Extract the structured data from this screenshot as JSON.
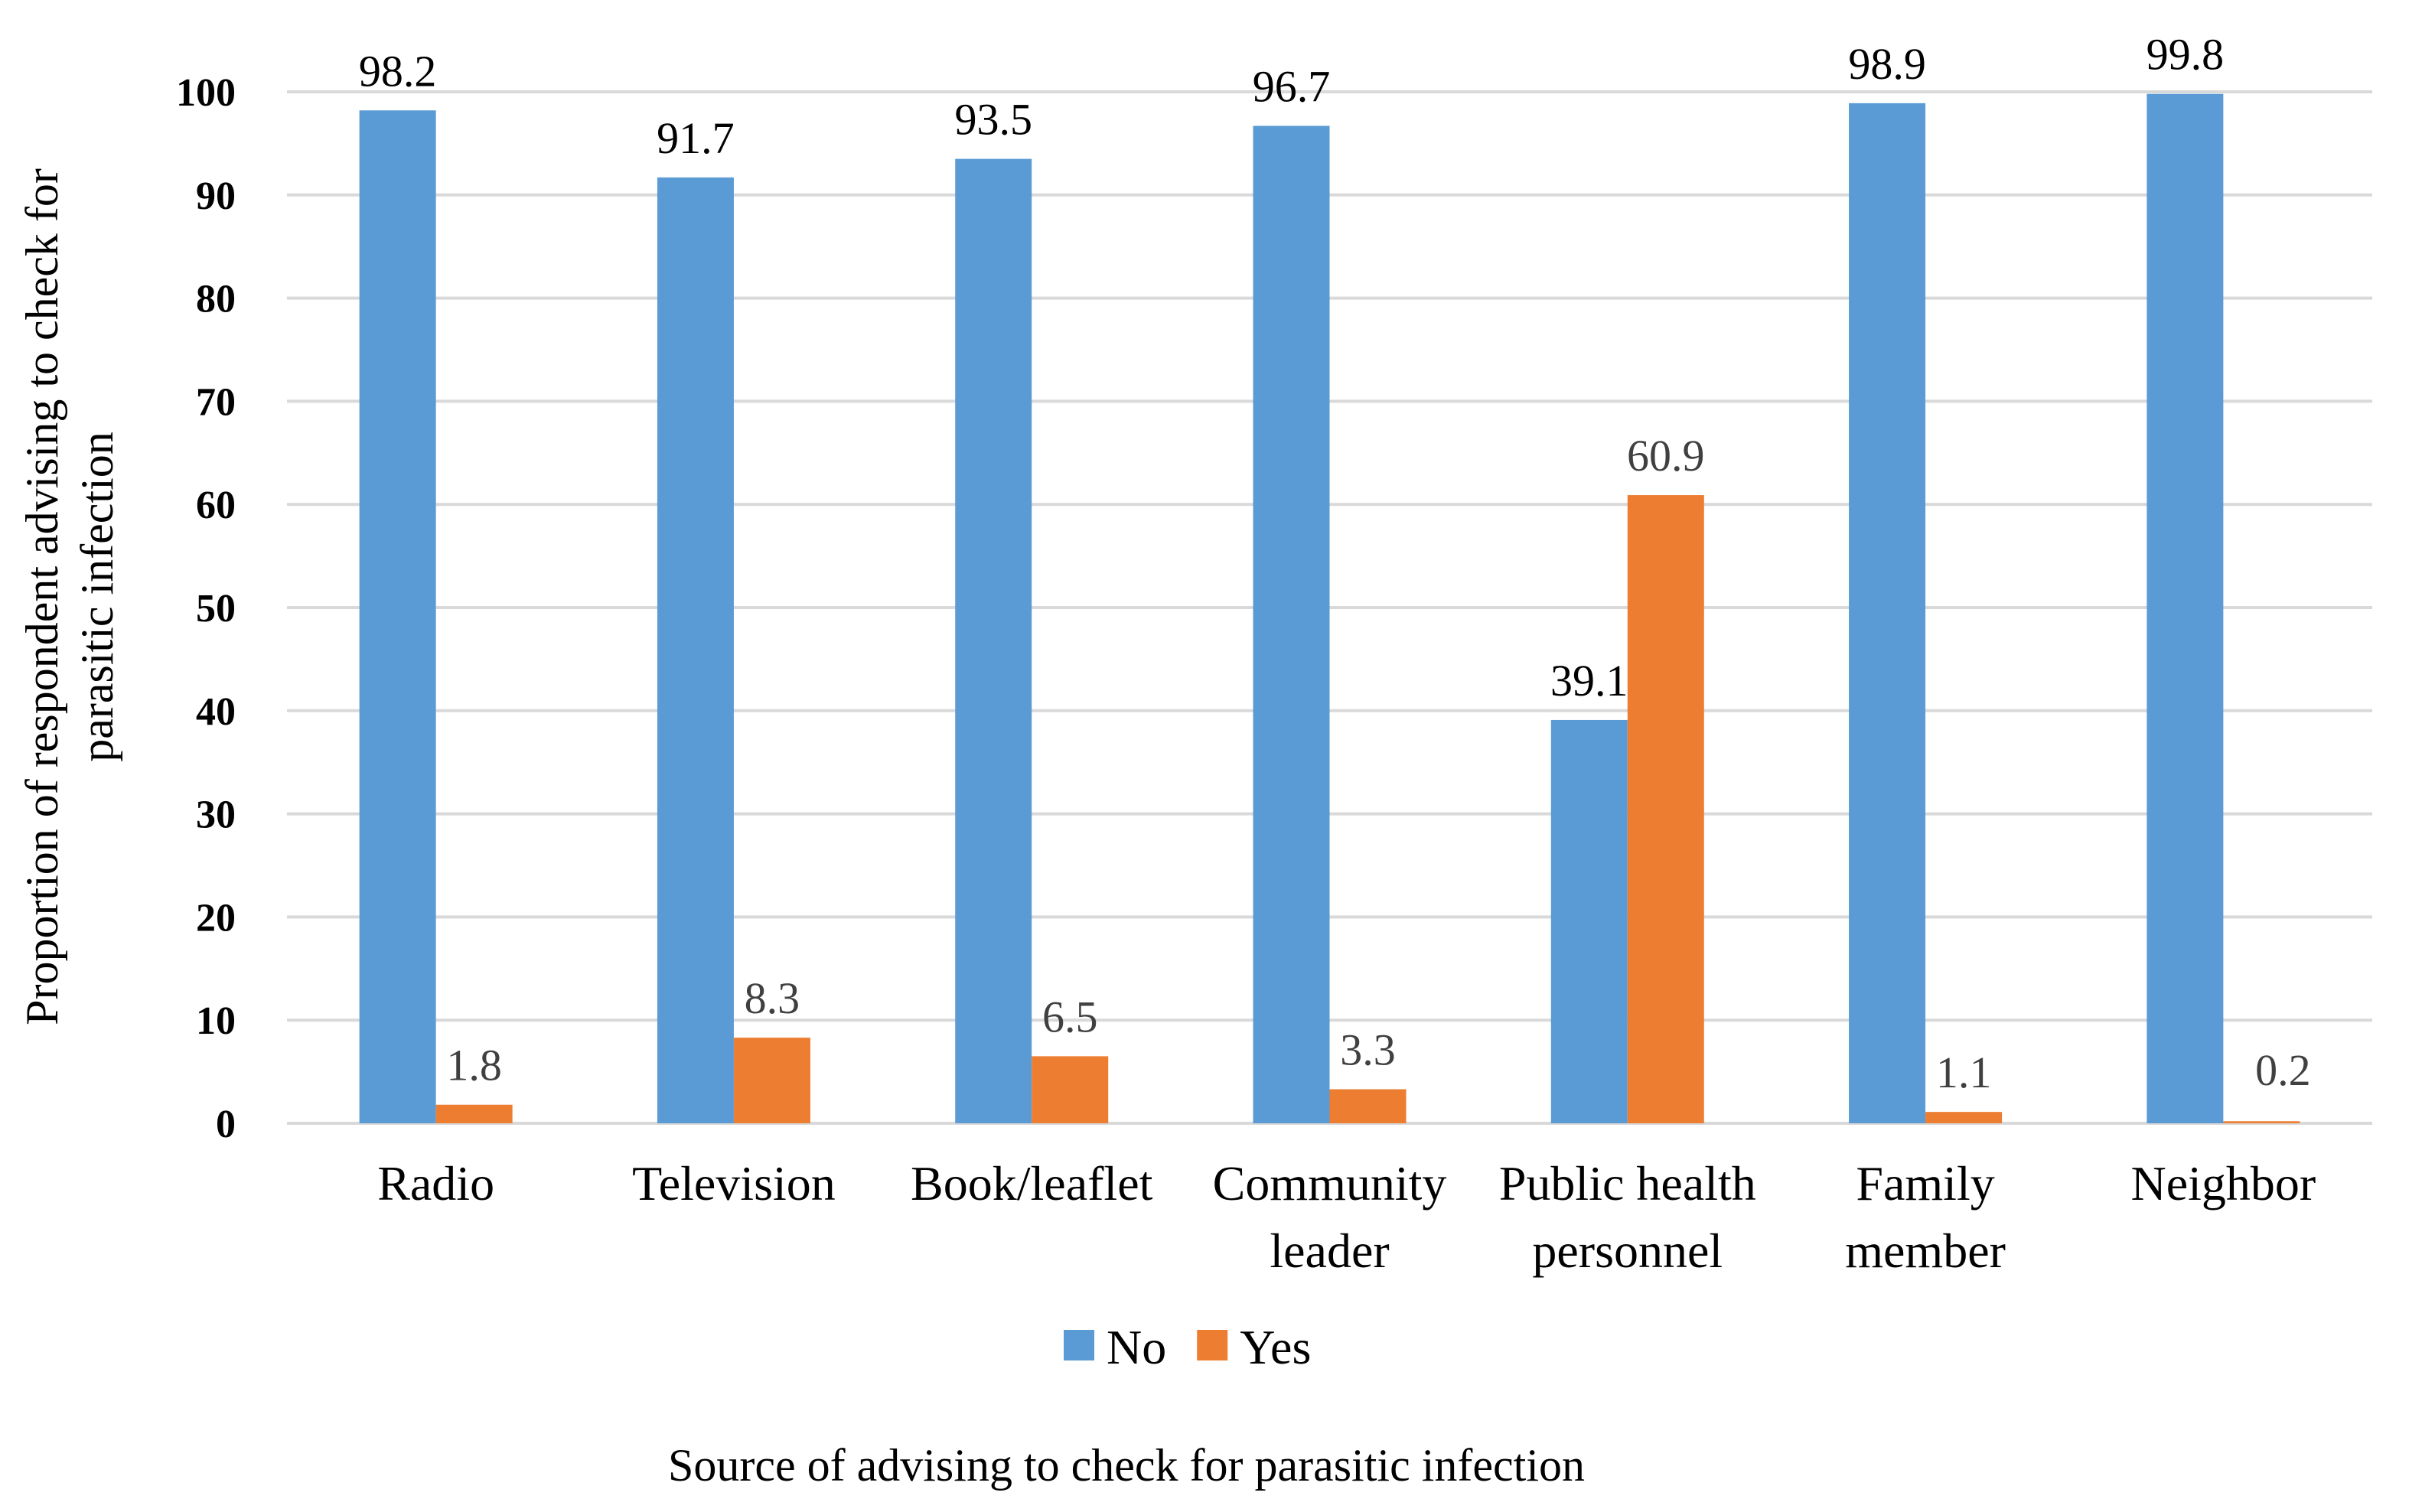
{
  "chart_data": {
    "type": "bar",
    "title": "",
    "categories": [
      [
        "Radio"
      ],
      [
        "Television"
      ],
      [
        "Book/leaflet"
      ],
      [
        "Community",
        "leader"
      ],
      [
        "Public health",
        "personnel"
      ],
      [
        "Family",
        "member"
      ],
      [
        "Neighbor"
      ]
    ],
    "series": [
      {
        "name": "No",
        "color": "#5b9bd5",
        "values": [
          98.2,
          91.7,
          93.5,
          96.7,
          39.1,
          98.9,
          99.8
        ]
      },
      {
        "name": "Yes",
        "color": "#ed7d31",
        "values": [
          1.8,
          8.3,
          6.5,
          3.3,
          60.9,
          1.1,
          0.2
        ]
      }
    ],
    "value_labels": {
      "No": [
        "98.2",
        "91.7",
        "93.5",
        "96.7",
        "39.1",
        "98.9",
        "99.8"
      ],
      "Yes": [
        "1.8",
        "8.3",
        "6.5",
        "3.3",
        "60.9",
        "1.1",
        "0.2"
      ]
    },
    "ylim": [
      0,
      100
    ],
    "yticks": [
      0,
      10,
      20,
      30,
      40,
      50,
      60,
      70,
      80,
      90,
      100
    ],
    "ylabel": [
      "Proportion of respondent advising to check for",
      "parasitic infection"
    ],
    "xlabel": "Source of advising to check for parasitic infection",
    "grid": true,
    "legend_position": "bottom"
  }
}
